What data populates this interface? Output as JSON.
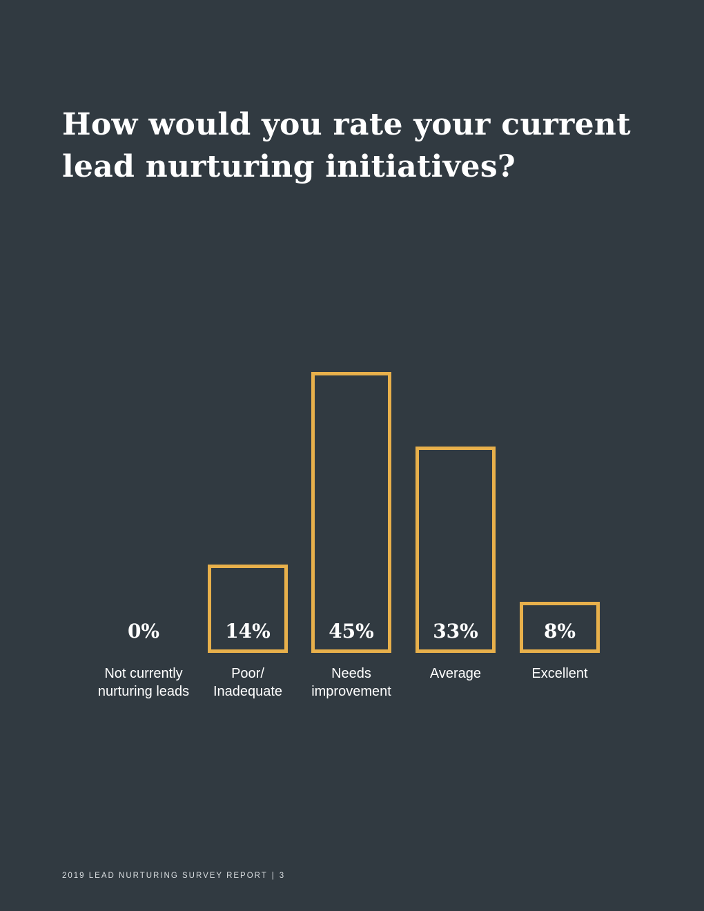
{
  "page": {
    "title": "How would you rate your current lead nurturing initiatives?",
    "footer": {
      "report": "2019 LEAD NURTURING SURVEY REPORT",
      "separator": "|",
      "page_number": "3"
    }
  },
  "colors": {
    "background": "#313a41",
    "bar_outline": "#e8b04b",
    "text": "#ffffff"
  },
  "chart_data": {
    "type": "bar",
    "title": "How would you rate your current lead nurturing initiatives?",
    "categories": [
      [
        "Not currently",
        "nurturing leads"
      ],
      [
        "Poor/",
        "Inadequate"
      ],
      [
        "Needs",
        "improvement"
      ],
      [
        "Average"
      ],
      [
        "Excellent"
      ]
    ],
    "values": [
      0,
      14,
      45,
      33,
      8
    ],
    "data_labels": [
      "0%",
      "14%",
      "45%",
      "33%",
      "8%"
    ],
    "unit": "%",
    "ylim": [
      0,
      45
    ],
    "grid": false,
    "legend": "none"
  }
}
